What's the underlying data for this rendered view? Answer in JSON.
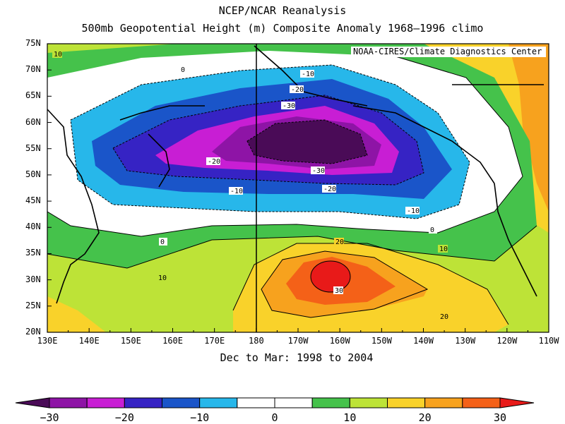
{
  "chart_data": {
    "type": "heatmap",
    "title": "NCEP/NCAR Reanalysis",
    "subtitle": "500mb Geopotential Height (m) Composite Anomaly 1968–1996 climo",
    "period": "Dec to Mar: 1998 to 2004",
    "credit": "NOAA-CIRES/Climate Diagnostics Center",
    "lon_labels": [
      "130E",
      "140E",
      "150E",
      "160E",
      "170E",
      "180",
      "170W",
      "160W",
      "150W",
      "140W",
      "130W",
      "120W",
      "110W"
    ],
    "lat_labels": [
      "75N",
      "70N",
      "65N",
      "60N",
      "55N",
      "50N",
      "45N",
      "40N",
      "35N",
      "30N",
      "25N",
      "20N"
    ],
    "lon_range": [
      "130E",
      "110W"
    ],
    "lat_range": [
      "20N",
      "75N"
    ],
    "contour_labels": [
      "-30",
      "-20",
      "-10",
      "0",
      "10",
      "20",
      "30"
    ],
    "colorbar": {
      "levels": [
        -30,
        -25,
        -20,
        -15,
        -10,
        -5,
        0,
        5,
        10,
        15,
        20,
        25,
        30
      ],
      "tick_labels": [
        "−30",
        "−20",
        "−10",
        "0",
        "10",
        "20",
        "30"
      ],
      "colors": [
        "#4a0b57",
        "#8e14a6",
        "#c81ed4",
        "#3623c4",
        "#1a55c9",
        "#27b7ea",
        "#ffffff",
        "#ffffff",
        "#45c24b",
        "#bde337",
        "#f9d22a",
        "#f7a21e",
        "#f46118",
        "#e81a19"
      ]
    },
    "anomaly_centers": [
      {
        "sign": "negative",
        "label": "-30",
        "location": "~60N 175W"
      },
      {
        "sign": "positive",
        "label": "30",
        "location": "~30N 160W"
      }
    ]
  }
}
